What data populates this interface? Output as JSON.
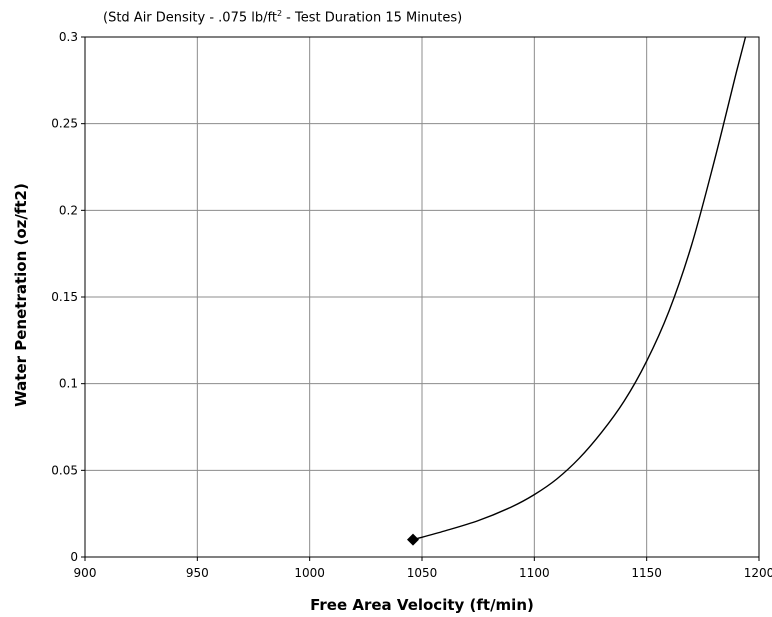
{
  "subtitle": {
    "prefix": "(Std Air Density - .075 lb/ft",
    "sup": "2",
    "suffix": " -  Test Duration 15 Minutes)"
  },
  "chart_data": {
    "type": "line",
    "xlabel": "Free Area Velocity (ft/min)",
    "ylabel": "Water Penetration (oz/ft2)",
    "xlim": [
      900,
      1200
    ],
    "ylim": [
      0,
      0.3
    ],
    "grid": true,
    "x_ticks": [
      900,
      950,
      1000,
      1050,
      1100,
      1150,
      1200
    ],
    "y_ticks": [
      0,
      0.05,
      0.1,
      0.15,
      0.2,
      0.25,
      0.3
    ],
    "x_tick_labels": [
      "900",
      "950",
      "1000",
      "1050",
      "1100",
      "1150",
      "1200"
    ],
    "y_tick_labels": [
      "0",
      "0.05",
      "0.1",
      "0.15",
      "0.2",
      "0.25",
      "0.3"
    ],
    "series": [
      {
        "x": [
          1046,
          1060,
          1075,
          1090,
          1100,
          1110,
          1120,
          1130,
          1140,
          1150,
          1160,
          1170,
          1180,
          1190,
          1194
        ],
        "y": [
          0.01,
          0.015,
          0.021,
          0.029,
          0.036,
          0.045,
          0.057,
          0.072,
          0.09,
          0.113,
          0.142,
          0.18,
          0.228,
          0.28,
          0.3
        ]
      }
    ],
    "marker_point": {
      "x": 1046,
      "y": 0.01,
      "shape": "diamond"
    }
  }
}
